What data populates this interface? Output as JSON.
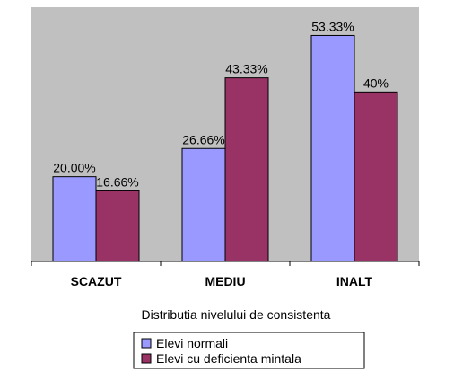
{
  "chart_data": {
    "type": "bar",
    "categories": [
      "SCAZUT",
      "MEDIU",
      "INALT"
    ],
    "series": [
      {
        "name": "Elevi normali",
        "values": [
          20.0,
          26.66,
          53.33
        ],
        "labels": [
          "20.00%",
          "26.66%",
          "53.33%"
        ],
        "color": "#9999FF"
      },
      {
        "name": "Elevi cu deficienta mintala",
        "values": [
          16.66,
          43.33,
          40
        ],
        "labels": [
          "16.66%",
          "43.33%",
          "40%"
        ],
        "color": "#993366"
      }
    ],
    "xlabel": "Distributia nivelului de consistenta",
    "ylabel": "",
    "ylim": [
      0,
      60
    ],
    "grid": false,
    "legend_position": "bottom-center",
    "plot_background": "#C0C0C0"
  }
}
